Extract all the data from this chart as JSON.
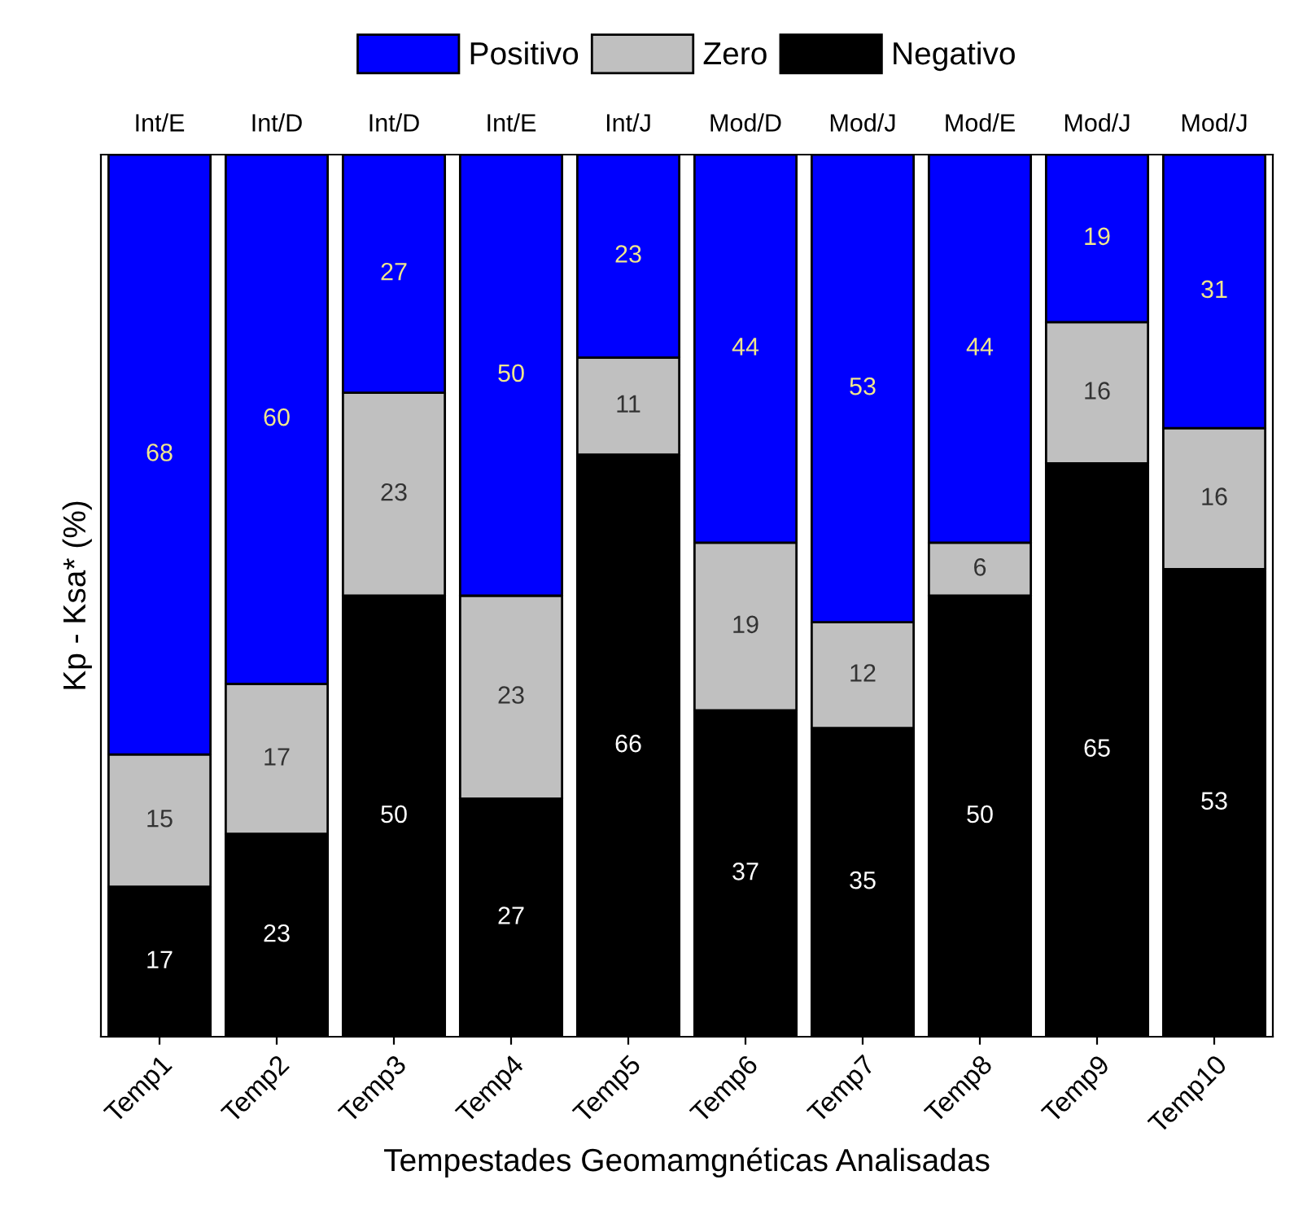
{
  "chart_data": {
    "type": "bar",
    "stacked": true,
    "xlabel": "Tempestades Geomamgnéticas Analisadas",
    "ylabel": "Kp - Ksa* (%)",
    "categories": [
      "Temp1",
      "Temp2",
      "Temp3",
      "Temp4",
      "Temp5",
      "Temp6",
      "Temp7",
      "Temp8",
      "Temp9",
      "Temp10"
    ],
    "series": [
      {
        "name": "Negativo",
        "color": "#000000",
        "values": [
          17,
          23,
          50,
          27,
          66,
          37,
          35,
          50,
          65,
          53
        ]
      },
      {
        "name": "Zero",
        "color": "#c0c0c0",
        "values": [
          15,
          17,
          23,
          23,
          11,
          19,
          12,
          6,
          16,
          16
        ]
      },
      {
        "name": "Positivo",
        "color": "#0000ff",
        "values": [
          68,
          60,
          27,
          50,
          23,
          44,
          53,
          44,
          19,
          31
        ]
      }
    ],
    "ylim": [
      0,
      100
    ],
    "tick_labels": "x",
    "data_labels": true,
    "legend": "top",
    "grid": false,
    "annotations": [
      {
        "text": "Int/E",
        "x": "Temp1",
        "y": 100
      },
      {
        "text": "Int/D",
        "x": "Temp2",
        "y": 100
      },
      {
        "text": "Int/D",
        "x": "Temp3",
        "y": 100
      },
      {
        "text": "Int/E",
        "x": "Temp4",
        "y": 100
      },
      {
        "text": "Int/J",
        "x": "Temp5",
        "y": 100
      },
      {
        "text": "Mod/D",
        "x": "Temp6",
        "y": 100
      },
      {
        "text": "Mod/J",
        "x": "Temp7",
        "y": 100
      },
      {
        "text": "Mod/E",
        "x": "Temp8",
        "y": 100
      },
      {
        "text": "Mod/J",
        "x": "Temp9",
        "y": 100
      },
      {
        "text": "Mod/J",
        "x": "Temp10",
        "y": 100
      }
    ]
  }
}
